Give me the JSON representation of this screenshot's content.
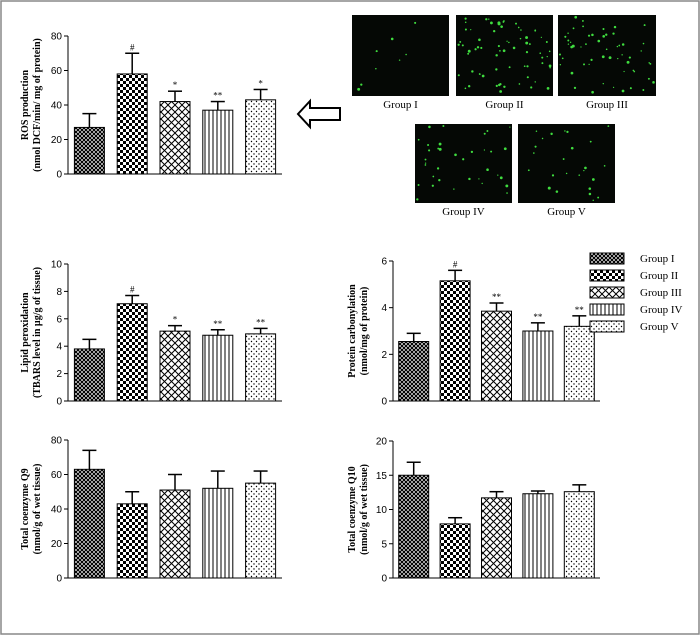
{
  "chart_data": [
    {
      "type": "bar",
      "ylabel": [
        "ROS production",
        "(nmol DCF/min/ mg of protein)"
      ],
      "values": [
        27,
        58,
        42,
        37,
        43
      ],
      "errors": [
        8,
        12,
        6,
        5,
        6
      ],
      "annotations": [
        null,
        "#",
        "*",
        "**",
        "*"
      ],
      "ylim": [
        0,
        80
      ],
      "yticks": [
        0,
        20,
        40,
        60,
        80
      ]
    },
    {
      "type": "bar",
      "ylabel": [
        "Lipid peroxidation",
        "(TBARS level in µg/g of tissue)"
      ],
      "values": [
        3.8,
        7.1,
        5.1,
        4.8,
        4.9
      ],
      "errors": [
        0.7,
        0.6,
        0.4,
        0.4,
        0.4
      ],
      "annotations": [
        null,
        "#",
        "*",
        "**",
        "**"
      ],
      "ylim": [
        0,
        10
      ],
      "yticks": [
        0,
        2,
        4,
        6,
        8,
        10
      ]
    },
    {
      "type": "bar",
      "ylabel": [
        "Protein carbonylation",
        "(nmol/mg of protein)"
      ],
      "values": [
        2.55,
        5.15,
        3.85,
        3.0,
        3.2
      ],
      "errors": [
        0.35,
        0.45,
        0.35,
        0.35,
        0.45
      ],
      "annotations": [
        null,
        "#",
        "**",
        "**",
        "**"
      ],
      "ylim": [
        0,
        6
      ],
      "yticks": [
        0,
        2,
        4,
        6
      ]
    },
    {
      "type": "bar",
      "ylabel": [
        "Total coenzyme Q9",
        "(nmol/g of wet tissue)"
      ],
      "values": [
        63,
        43,
        51,
        52,
        55
      ],
      "errors": [
        11,
        7,
        9,
        10,
        7
      ],
      "ylim": [
        0,
        80
      ],
      "yticks": [
        0,
        20,
        40,
        60,
        80
      ]
    },
    {
      "type": "bar",
      "ylabel": [
        "Total coenzyme Q10",
        "(nmol/g of wet tissue)"
      ],
      "values": [
        15,
        7.9,
        11.7,
        12.3,
        12.6
      ],
      "errors": [
        1.9,
        0.9,
        0.9,
        0.4,
        1.0
      ],
      "ylim": [
        0,
        20
      ],
      "yticks": [
        0,
        5,
        10,
        15,
        20
      ]
    }
  ],
  "legend": {
    "entries": [
      "Group I",
      "Group II",
      "Group III",
      "Group IV",
      "Group V"
    ],
    "patterns": [
      "dense-crosshatch",
      "checker",
      "crosshatch",
      "vertical",
      "dots"
    ]
  },
  "images": {
    "labels": [
      "Group I",
      "Group II",
      "Group III",
      "Group IV",
      "Group V"
    ]
  }
}
